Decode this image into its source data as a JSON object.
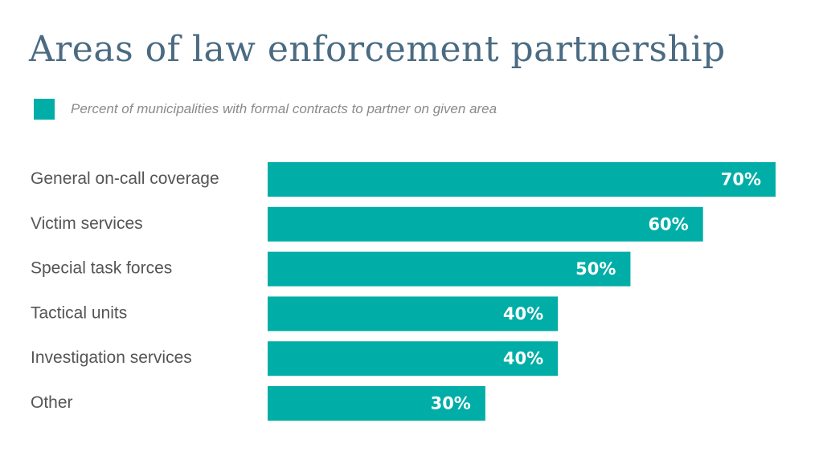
{
  "colors": {
    "bar": "#00aea7",
    "title": "#4a6b82"
  },
  "chart_data": {
    "type": "bar",
    "orientation": "horizontal",
    "title": "Areas of law enforcement partnership",
    "legend": {
      "label": "Percent of municipalities with formal contracts to partner on given area",
      "placement": "top-left"
    },
    "categories": [
      "General on-call coverage",
      "Victim services",
      "Special task forces",
      "Tactical units",
      "Investigation services",
      "Other"
    ],
    "series": [
      {
        "name": "Percent of municipalities with formal contracts to partner on given area",
        "values": [
          70,
          60,
          50,
          40,
          40,
          30
        ]
      }
    ],
    "value_labels": [
      "70%",
      "60%",
      "50%",
      "40%",
      "40%",
      "30%"
    ],
    "xlim": [
      0,
      70
    ],
    "grid": false
  }
}
